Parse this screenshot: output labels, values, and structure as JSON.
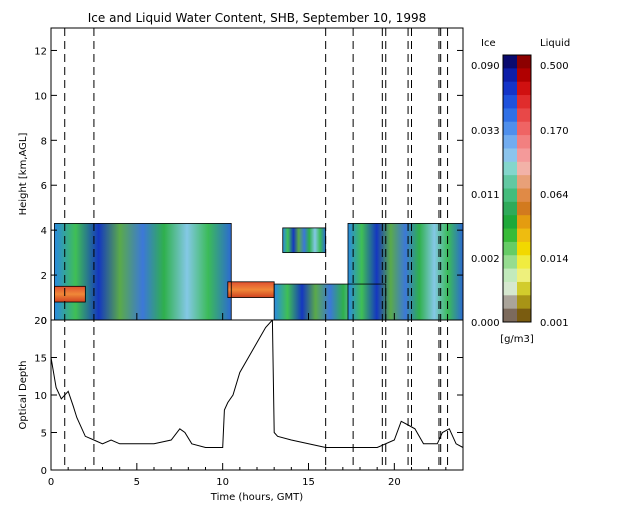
{
  "chart_data": [
    {
      "type": "heatmap",
      "title": "Ice and Liquid Water Content, SHB, September 10, 1998",
      "ylabel": "Height [km,AGL]",
      "xlim": [
        0,
        24
      ],
      "ylim": [
        0,
        13
      ],
      "yticks": [
        0,
        2,
        4,
        6,
        8,
        10,
        12
      ],
      "cloud_layers": [
        {
          "x_start": 0.2,
          "x_end": 10.5,
          "base_km": 0.0,
          "top_km": 4.3,
          "phase": "ice"
        },
        {
          "x_start": 0.2,
          "x_end": 2.0,
          "base_km": 0.8,
          "top_km": 1.5,
          "phase": "liquid"
        },
        {
          "x_start": 10.3,
          "x_end": 13.0,
          "base_km": 1.0,
          "top_km": 1.7,
          "phase": "liquid"
        },
        {
          "x_start": 13.0,
          "x_end": 19.5,
          "base_km": 0.0,
          "top_km": 1.6,
          "phase": "ice"
        },
        {
          "x_start": 13.5,
          "x_end": 16.0,
          "base_km": 3.0,
          "top_km": 4.1,
          "phase": "ice"
        },
        {
          "x_start": 17.3,
          "x_end": 24.0,
          "base_km": 0.0,
          "top_km": 4.3,
          "phase": "ice"
        }
      ],
      "vertical_lines_hours": [
        0.8,
        2.5,
        16.0,
        17.6,
        19.3,
        19.5,
        20.8,
        21.0,
        22.6,
        22.7,
        23.1
      ]
    },
    {
      "type": "line",
      "xlabel": "Time (hours, GMT)",
      "ylabel": "Optical Depth",
      "xlim": [
        0,
        24
      ],
      "ylim": [
        0,
        20
      ],
      "xticks": [
        0,
        5,
        10,
        15,
        20
      ],
      "yticks": [
        0,
        5,
        10,
        15,
        20
      ],
      "x": [
        0,
        0.3,
        0.6,
        1.0,
        1.3,
        1.5,
        2.0,
        2.5,
        3.0,
        3.5,
        4.0,
        5.0,
        6.0,
        7.0,
        7.5,
        7.8,
        8.2,
        9.0,
        10.0,
        10.1,
        10.3,
        10.6,
        11.0,
        11.5,
        12.0,
        12.5,
        12.9,
        13.0,
        13.2,
        14.0,
        15.0,
        16.0,
        17.0,
        18.0,
        19.0,
        20.0,
        20.4,
        20.8,
        21.2,
        21.7,
        22.0,
        22.5,
        22.8,
        23.2,
        23.6,
        24.0
      ],
      "y": [
        15,
        11,
        9.5,
        10.5,
        8.5,
        7,
        4.5,
        4,
        3.5,
        4,
        3.5,
        3.5,
        3.5,
        4,
        5.5,
        5,
        3.5,
        3,
        3,
        8,
        9,
        10,
        13,
        15,
        17,
        19,
        20,
        5,
        4.5,
        4,
        3.5,
        3,
        3,
        3,
        3,
        4,
        6.5,
        6,
        5.5,
        3.5,
        3.5,
        3.5,
        5,
        5.5,
        3.5,
        3
      ]
    }
  ],
  "colorbar": {
    "ice_label": "Ice",
    "liquid_label": "Liquid",
    "unit": "[g/m3]",
    "ice_ticks": [
      "0.090",
      "0.033",
      "0.011",
      "0.002",
      "0.000"
    ],
    "liquid_ticks": [
      "0.500",
      "0.170",
      "0.064",
      "0.014",
      "0.001"
    ],
    "ice_colors": [
      "#0a0a6e",
      "#0d1ea8",
      "#1434c8",
      "#1f52dc",
      "#3070e6",
      "#4f8fec",
      "#72acef",
      "#8cc4ec",
      "#84d6cc",
      "#62c8a2",
      "#44bc7c",
      "#2faa5a",
      "#1fa83a",
      "#38bb38",
      "#66cc66",
      "#96dc90",
      "#c2eabc",
      "#d6e8cf",
      "#aaa49a",
      "#7c6a5c"
    ],
    "liquid_colors": [
      "#8c0000",
      "#b00000",
      "#d01010",
      "#e02c2c",
      "#e84848",
      "#ef6464",
      "#f28080",
      "#f49a9a",
      "#f2b2a8",
      "#e8a078",
      "#e08a46",
      "#d27a1e",
      "#e49c10",
      "#eebc10",
      "#f2d800",
      "#f0ec40",
      "#eef07c",
      "#d2cc2c",
      "#a89416",
      "#7a5c10"
    ]
  }
}
